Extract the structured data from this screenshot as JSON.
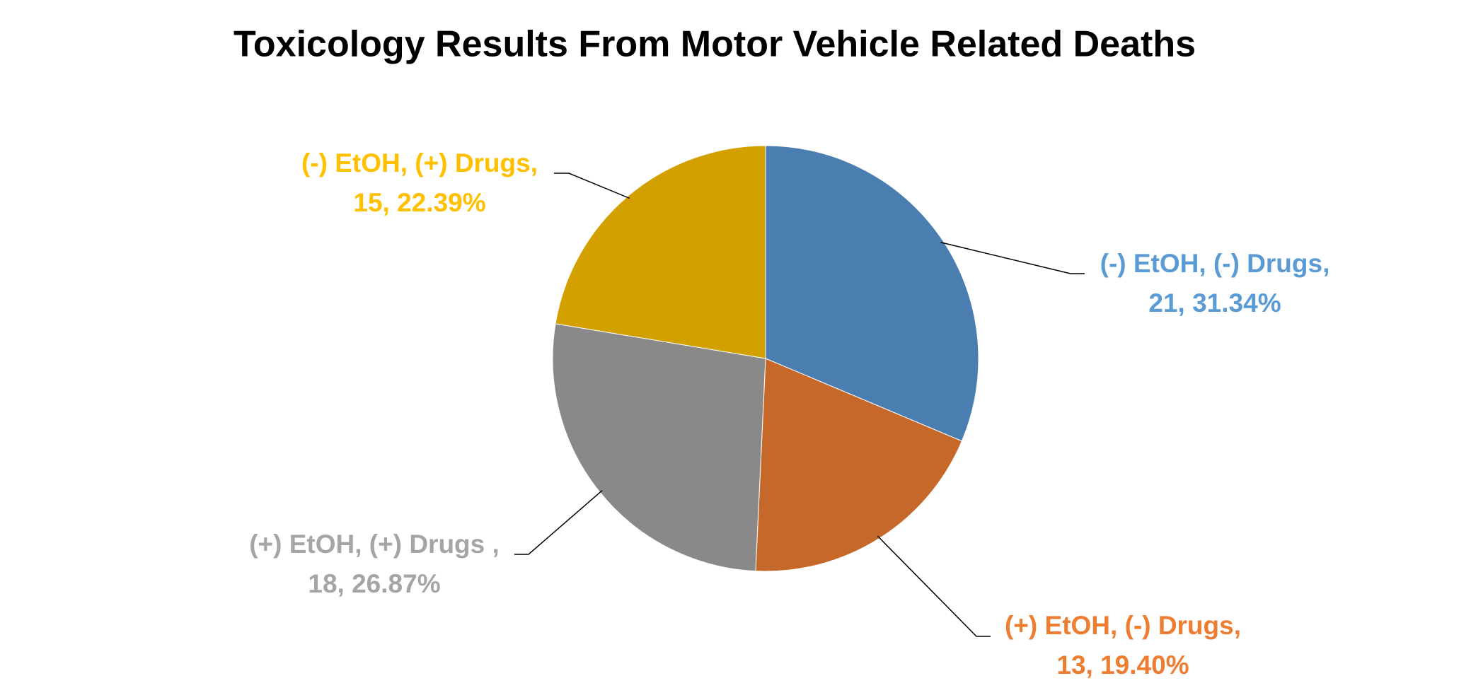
{
  "chart_data": {
    "type": "pie",
    "title": "Toxicology Results From Motor Vehicle Related Deaths",
    "categories": [
      "(-) EtOH, (-) Drugs,",
      "(+) EtOH, (-) Drugs,",
      "(+) EtOH, (+) Drugs ,",
      "(-) EtOH, (+) Drugs,"
    ],
    "values": [
      21,
      13,
      18,
      15
    ],
    "value_labels": [
      "21, 31.34%",
      "13, 19.40%",
      "18, 26.87%",
      "15, 22.39%"
    ],
    "colors": [
      "#4a7eb0",
      "#c5682a",
      "#898989",
      "#d3a000"
    ],
    "label_colors": [
      "#5b9bd5",
      "#ed7d31",
      "#a5a5a5",
      "#ffc000"
    ]
  }
}
